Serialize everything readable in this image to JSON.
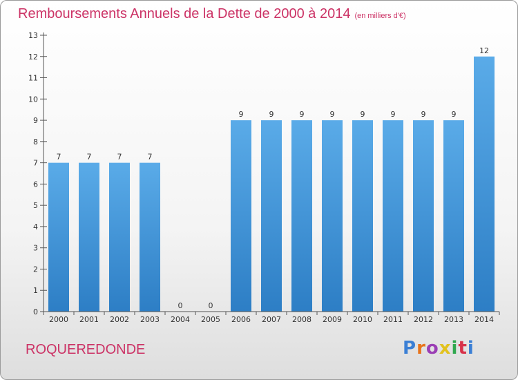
{
  "header": {
    "title": "Remboursements Annuels de la Dette de 2000 à 2014",
    "units": "(en milliers d'€)"
  },
  "footer": {
    "commune": "ROQUEREDONDE",
    "logo": "Proxiti",
    "logo_colors": [
      "#3a7fd5",
      "#e8731a",
      "#9b3fb5",
      "#e2c21e",
      "#2fa84f",
      "#d8324a",
      "#3a7fd5"
    ]
  },
  "colors": {
    "bar": "#3d8fd6",
    "bar_light": "#5aabe8",
    "axis": "#555555",
    "label": "#333333"
  },
  "chart_data": {
    "type": "bar",
    "title": "Remboursements Annuels de la Dette de 2000 à 2014",
    "subtitle": "(en milliers d'€)",
    "categories": [
      "2000",
      "2001",
      "2002",
      "2003",
      "2004",
      "2005",
      "2006",
      "2007",
      "2008",
      "2009",
      "2010",
      "2011",
      "2012",
      "2013",
      "2014"
    ],
    "values": [
      7,
      7,
      7,
      7,
      0,
      0,
      9,
      9,
      9,
      9,
      9,
      9,
      9,
      9,
      12
    ],
    "ylim": [
      0,
      13
    ],
    "yticks": [
      0,
      1,
      2,
      3,
      4,
      5,
      6,
      7,
      8,
      9,
      10,
      11,
      12,
      13
    ],
    "grid": false,
    "legend": "none"
  }
}
